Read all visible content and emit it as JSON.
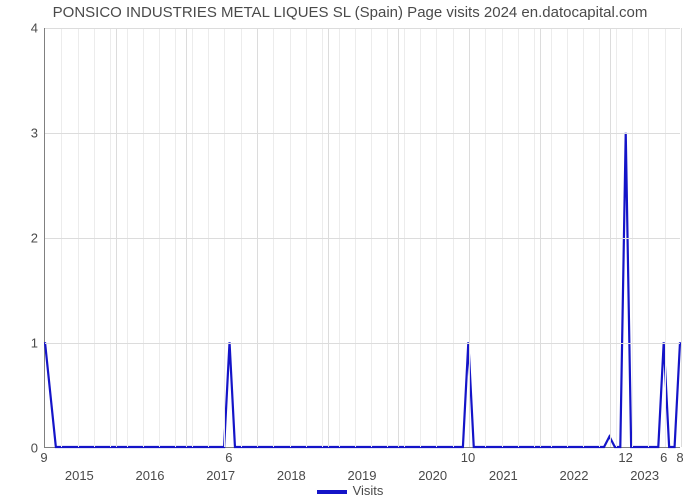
{
  "chart": {
    "type": "line",
    "title": "PONSICO INDUSTRIES METAL LIQUES SL (Spain) Page visits 2024 en.datocapital.com",
    "title_fontsize": 15,
    "title_color": "#4a4a4a",
    "background_color": "#ffffff",
    "line_color": "#1414c8",
    "line_width": 2.2,
    "grid_color": "#dcdcdc",
    "axis_color": "#808080",
    "tick_fontsize": 13,
    "tick_color": "#4a4a4a",
    "value_label_fontsize": 13,
    "value_label_color": "#4a4a4a",
    "ylim": [
      0,
      4
    ],
    "yticks": [
      0,
      1,
      2,
      3,
      4
    ],
    "xlim": [
      0,
      117
    ],
    "minor_v_grid_count": 39,
    "major_v_positions": [
      0,
      13,
      26,
      39,
      52,
      65,
      78,
      91,
      104,
      117
    ],
    "xtick_labels": [
      {
        "pos": 6.5,
        "text": "2015"
      },
      {
        "pos": 19.5,
        "text": "2016"
      },
      {
        "pos": 32.5,
        "text": "2017"
      },
      {
        "pos": 45.5,
        "text": "2018"
      },
      {
        "pos": 58.5,
        "text": "2019"
      },
      {
        "pos": 71.5,
        "text": "2020"
      },
      {
        "pos": 84.5,
        "text": "2021"
      },
      {
        "pos": 97.5,
        "text": "2022"
      },
      {
        "pos": 110.5,
        "text": "2023"
      }
    ],
    "points": [
      {
        "x": 0,
        "y": 1
      },
      {
        "x": 2,
        "y": 0
      },
      {
        "x": 33,
        "y": 0
      },
      {
        "x": 34,
        "y": 1
      },
      {
        "x": 35,
        "y": 0
      },
      {
        "x": 77,
        "y": 0
      },
      {
        "x": 78,
        "y": 1
      },
      {
        "x": 79,
        "y": 0
      },
      {
        "x": 103,
        "y": 0
      },
      {
        "x": 104,
        "y": 0.1
      },
      {
        "x": 105,
        "y": 0
      },
      {
        "x": 106,
        "y": 0
      },
      {
        "x": 107,
        "y": 3
      },
      {
        "x": 108,
        "y": 0
      },
      {
        "x": 113,
        "y": 0
      },
      {
        "x": 114,
        "y": 1
      },
      {
        "x": 115,
        "y": 0
      },
      {
        "x": 116,
        "y": 0
      },
      {
        "x": 117,
        "y": 1
      }
    ],
    "value_labels": [
      {
        "x": 0,
        "text": "9"
      },
      {
        "x": 34,
        "text": "6"
      },
      {
        "x": 78,
        "text": "10"
      },
      {
        "x": 107,
        "text": "12"
      },
      {
        "x": 114,
        "text": "6"
      },
      {
        "x": 117,
        "text": "8"
      }
    ],
    "legend": {
      "label": "Visits",
      "color": "#1414c8"
    }
  }
}
